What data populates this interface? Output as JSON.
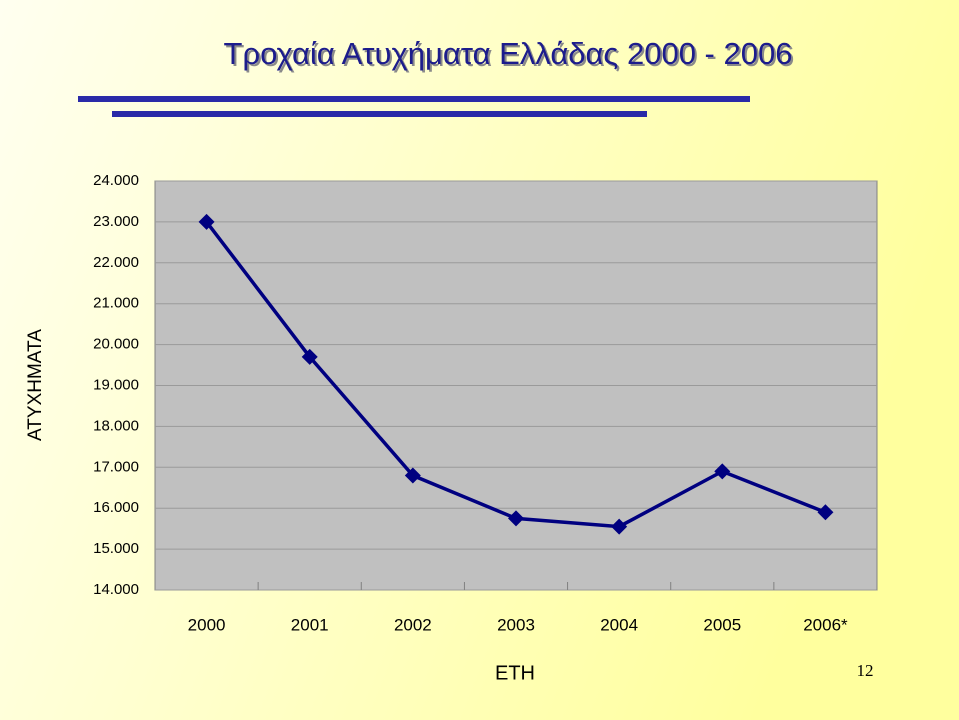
{
  "chart_data": {
    "type": "line",
    "title": "Τροχαία Ατυχήματα Ελλάδας 2000 - 2006",
    "y_label": "ΑΤΥΧΗΜΑΤΑ",
    "x_label": "ΕΤΗ",
    "categories": [
      "2000",
      "2001",
      "2002",
      "2003",
      "2004",
      "2005",
      "2006*"
    ],
    "series": [
      {
        "name": "Ατυχήματα",
        "color": "#000080",
        "values": [
          23000,
          19700,
          16800,
          15750,
          15550,
          16900,
          15900
        ]
      }
    ],
    "ylim": [
      14000,
      24000
    ],
    "yticks": [
      {
        "value": 14000,
        "label": "14.000"
      },
      {
        "value": 15000,
        "label": "15.000"
      },
      {
        "value": 16000,
        "label": "16.000"
      },
      {
        "value": 17000,
        "label": "17.000"
      },
      {
        "value": 18000,
        "label": "18.000"
      },
      {
        "value": 19000,
        "label": "19.000"
      },
      {
        "value": 20000,
        "label": "20.000"
      },
      {
        "value": 21000,
        "label": "21.000"
      },
      {
        "value": 22000,
        "label": "22.000"
      },
      {
        "value": 23000,
        "label": "23.000"
      },
      {
        "value": 24000,
        "label": "24.000"
      }
    ],
    "grid": true,
    "page_number": "12"
  }
}
